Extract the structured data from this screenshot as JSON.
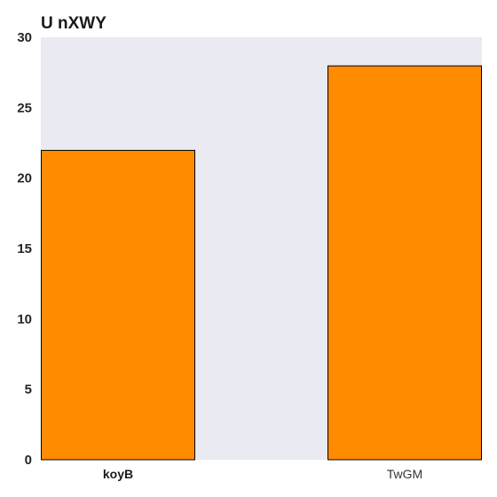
{
  "chart_data": {
    "type": "bar",
    "title": "U nXWY",
    "xlabel": "",
    "ylabel": "",
    "categories": [
      "koyB",
      "TwGM"
    ],
    "category_label_bold": [
      true,
      false
    ],
    "values": [
      22,
      28
    ],
    "ylim": [
      0,
      30
    ],
    "yticks": [
      0,
      5,
      10,
      15,
      20,
      25,
      30
    ],
    "grid": false,
    "bar_color": "#ff8c00",
    "bar_edge_color": "#000000",
    "plot_background": "#e9eaf2"
  }
}
